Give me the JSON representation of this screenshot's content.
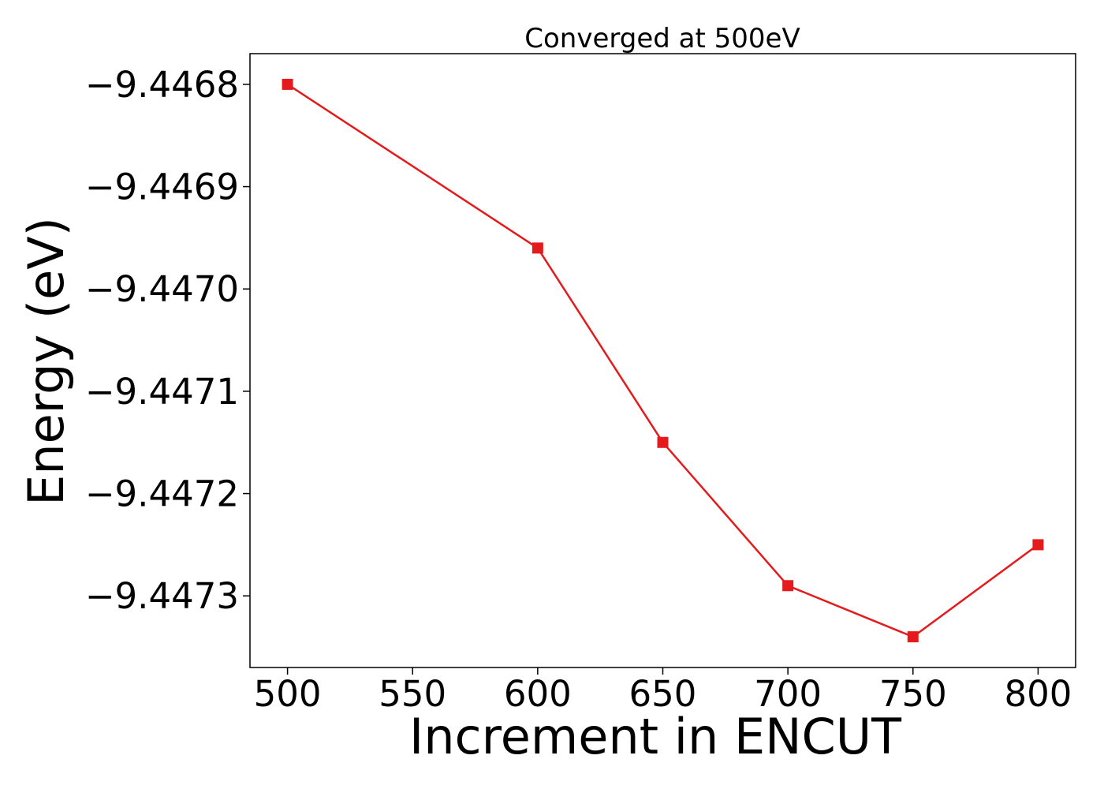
{
  "chart_data": {
    "type": "line",
    "title": "Converged at 500eV",
    "xlabel": "Increment in ENCUT",
    "ylabel": "Energy (eV)",
    "x_ticks": [
      "500",
      "550",
      "600",
      "650",
      "700",
      "750",
      "800"
    ],
    "x_tick_values": [
      500,
      550,
      600,
      650,
      700,
      750,
      800
    ],
    "y_ticks": [
      "−9.4468",
      "−9.4469",
      "−9.4470",
      "−9.4471",
      "−9.4472",
      "−9.4473"
    ],
    "y_tick_values": [
      -9.4468,
      -9.4469,
      -9.447,
      -9.4471,
      -9.4472,
      -9.4473
    ],
    "xlim": [
      485,
      815
    ],
    "ylim": [
      -9.44737,
      -9.44677
    ],
    "grid": false,
    "marker": "square",
    "color": "#e41a1c",
    "series": [
      {
        "x": [
          500,
          600,
          650,
          700,
          750,
          800
        ],
        "y": [
          -9.4468,
          -9.44696,
          -9.44715,
          -9.44729,
          -9.44734,
          -9.44725
        ]
      }
    ]
  }
}
